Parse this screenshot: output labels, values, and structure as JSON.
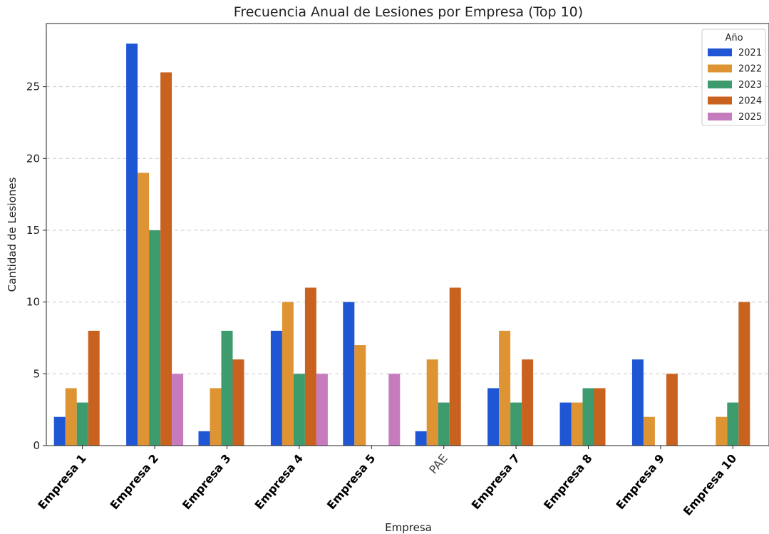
{
  "chart_data": {
    "type": "bar",
    "title": "Frecuencia Anual de Lesiones por Empresa (Top 10)",
    "xlabel": "Empresa",
    "ylabel": "Cantidad de Lesiones",
    "ylim": [
      0,
      29.4
    ],
    "yticks": [
      0,
      5,
      10,
      15,
      20,
      25
    ],
    "grid": "horizontal dashed",
    "legend_title": "Año",
    "legend_position": "top-right",
    "categories": [
      "Empresa 1",
      "Empresa 2",
      "Empresa 3",
      "Empresa 4",
      "Empresa 5",
      "PAE",
      "Empresa 7",
      "Empresa 8",
      "Empresa 9",
      "Empresa 10"
    ],
    "series": [
      {
        "name": "2021",
        "color": "#1f56d4",
        "values": [
          2,
          28,
          1,
          8,
          10,
          1,
          4,
          3,
          6,
          null
        ]
      },
      {
        "name": "2022",
        "color": "#de9432",
        "values": [
          4,
          19,
          4,
          10,
          7,
          6,
          8,
          3,
          2,
          2
        ]
      },
      {
        "name": "2023",
        "color": "#3e9b6e",
        "values": [
          3,
          15,
          8,
          5,
          null,
          3,
          3,
          4,
          null,
          3
        ]
      },
      {
        "name": "2024",
        "color": "#c9621f",
        "values": [
          8,
          26,
          6,
          11,
          null,
          11,
          6,
          4,
          5,
          10
        ]
      },
      {
        "name": "2025",
        "color": "#c77bbf",
        "values": [
          null,
          5,
          null,
          5,
          5,
          null,
          null,
          null,
          null,
          null
        ]
      }
    ]
  }
}
